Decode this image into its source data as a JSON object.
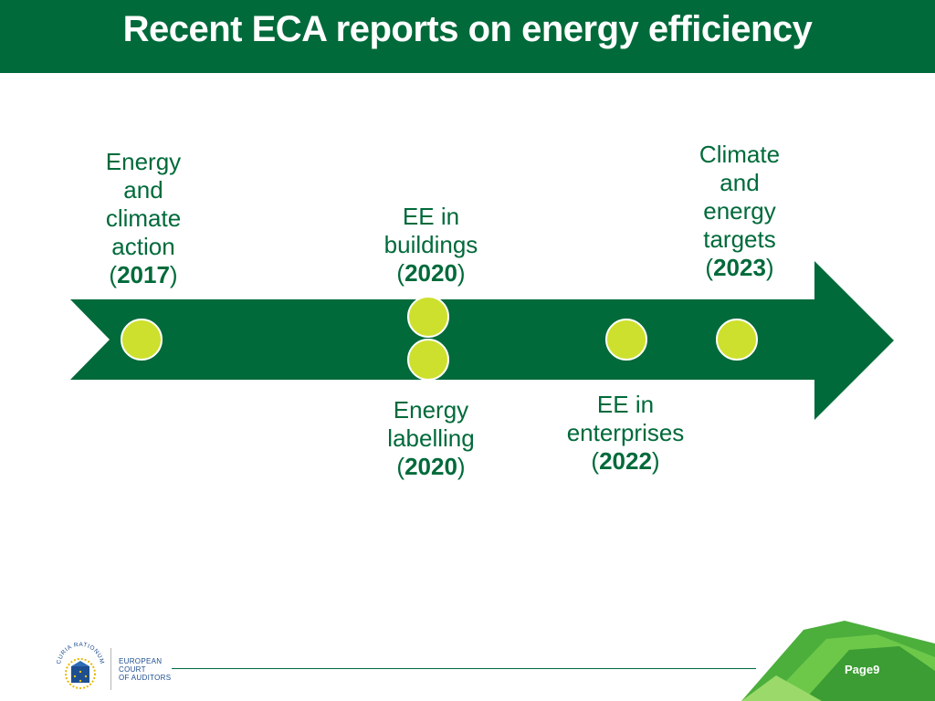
{
  "slide": {
    "title": "Recent ECA reports on energy efficiency",
    "page_label": "Page",
    "page_number": "9"
  },
  "org": {
    "line1": "EUROPEAN",
    "line2": "COURT",
    "line3": "OF AUDITORS",
    "motto": "CURIA RATIONUM"
  },
  "colors": {
    "header": "#006a3a",
    "arrow": "#006a3a",
    "milestone": "#cde02d",
    "text": "#006a3a"
  },
  "milestones": [
    {
      "text": "Energy and climate action",
      "year": "2017"
    },
    {
      "text": "EE in buildings",
      "year": "2020"
    },
    {
      "text": "Energy labelling",
      "year": "2020"
    },
    {
      "text": "EE in enterprises",
      "year": "2022"
    },
    {
      "text": "Climate and energy targets",
      "year": "2023"
    }
  ],
  "paren_open": "(",
  "paren_close": ")"
}
